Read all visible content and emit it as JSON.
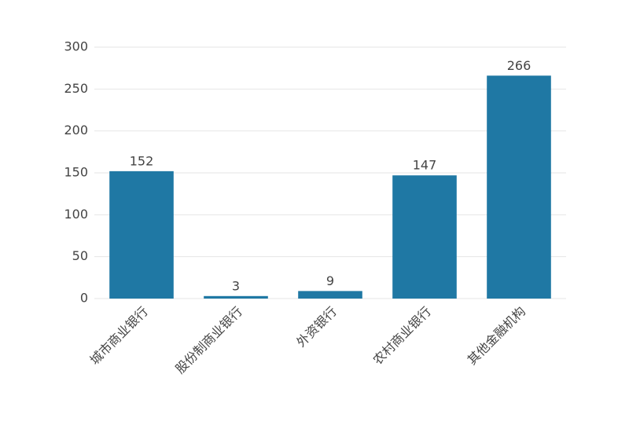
{
  "chart_data": {
    "type": "bar",
    "categories": [
      "城市商业银行",
      "股份制商业银行",
      "外资银行",
      "农村商业银行",
      "其他金融机构"
    ],
    "values": [
      152,
      3,
      9,
      147,
      266
    ],
    "color": "#1f78a4",
    "ylim": [
      0,
      300
    ],
    "yticks": [
      0,
      50,
      100,
      150,
      200,
      250,
      300
    ],
    "grid": true
  }
}
